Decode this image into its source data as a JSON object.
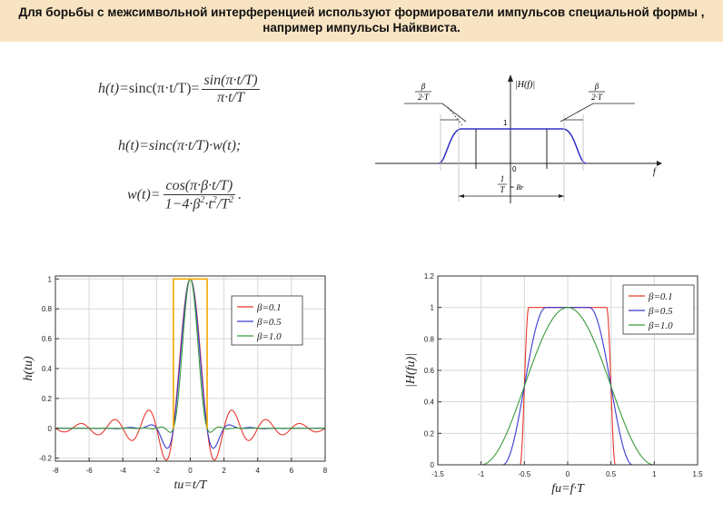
{
  "header": {
    "line1": "Для борьбы с межсимвольной интерференцией используют формирователи импульсов специальной формы ,",
    "line2": "например импульсы Найквиста."
  },
  "formulas": {
    "f1_left": "h(t)=",
    "f1_mid": "sinc(π·t/T)=",
    "f1_num": "sin(π·t/T)",
    "f1_den": "π·t/T",
    "f2": "h(t)=sinc(π·t/T)·w(t);",
    "f3_left": "w(t)=",
    "f3_num": "cos(π·β·t/T)",
    "f3_den_a": "1−4·β",
    "f3_den_b": "·t",
    "f3_den_c": "/T",
    "f3_sup": "2",
    "f3_end": "."
  },
  "spectrum_diagram": {
    "ylabel": "|H(f)|",
    "xlabel": "f",
    "one_label": "1",
    "zero_label": "0",
    "beta_num": "β",
    "beta_den": "2·T",
    "bottom_num": "1",
    "bottom_den": "T",
    "bottom_right": "= Br"
  },
  "chart_data": [
    {
      "type": "line",
      "xlabel": "tи=t/T",
      "ylabel": "h(tи)",
      "xlim": [
        -8,
        8
      ],
      "ylim": [
        -0.22,
        1.02
      ],
      "xticks": [
        "-8",
        "-6",
        "-4",
        "-2",
        "0",
        "2",
        "4",
        "6",
        "8"
      ],
      "yticks": [
        "-0.2",
        "0",
        "0.2",
        "0.4",
        "0.6",
        "0.8",
        "1"
      ],
      "grid": true,
      "legend_position": "top-right",
      "legend": [
        "β=0.1",
        "β=0.5",
        "β=1.0"
      ],
      "series": [
        {
          "name": "β=0.1",
          "color": "#e8392c",
          "x": [
            -8,
            -7.5,
            -7,
            -6.5,
            -6,
            -5.5,
            -5,
            -4.5,
            -4,
            -3.5,
            -3,
            -2.5,
            -2,
            -1.5,
            -1,
            -0.5,
            0,
            0.5,
            1,
            1.5,
            2,
            2.5,
            3,
            3.5,
            4,
            4.5,
            5,
            5.5,
            6,
            6.5,
            7,
            7.5,
            8
          ],
          "y": [
            0,
            -0.04,
            0,
            0.05,
            0,
            -0.06,
            0,
            0.07,
            0,
            -0.09,
            0,
            0.13,
            0,
            -0.21,
            0,
            0.64,
            1,
            0.64,
            0,
            -0.21,
            0,
            0.13,
            0,
            -0.09,
            0,
            0.07,
            0,
            -0.06,
            0,
            0.05,
            0,
            -0.04,
            0
          ]
        },
        {
          "name": "β=0.5",
          "color": "#3a3ad0",
          "x": [
            -8,
            -4,
            -3,
            -2.5,
            -2,
            -1.5,
            -1,
            -0.5,
            0,
            0.5,
            1,
            1.5,
            2,
            2.5,
            3,
            4,
            8
          ],
          "y": [
            0,
            0,
            0,
            0.01,
            0,
            -0.09,
            0,
            0.6,
            1,
            0.6,
            0,
            -0.09,
            0,
            0.01,
            0,
            0,
            0
          ]
        },
        {
          "name": "β=1.0",
          "color": "#3a9a3a",
          "x": [
            -8,
            -2,
            -1.5,
            -1,
            -0.5,
            0,
            0.5,
            1,
            1.5,
            2,
            8
          ],
          "y": [
            0,
            0,
            0,
            0,
            0.5,
            1,
            0.5,
            0,
            0,
            0,
            0
          ]
        },
        {
          "name": "",
          "color": "#f5a800",
          "x": [
            -1,
            -1,
            1,
            1
          ],
          "y": [
            0,
            1,
            1,
            0
          ]
        }
      ]
    },
    {
      "type": "line",
      "xlabel": "fи=f·T",
      "ylabel": "|H(fи)|",
      "xlim": [
        -1.5,
        1.5
      ],
      "ylim": [
        0,
        1.2
      ],
      "xticks": [
        "-1.5",
        "-1",
        "-0.5",
        "0",
        "0.5",
        "1",
        "1.5"
      ],
      "yticks": [
        "0",
        "0.2",
        "0.4",
        "0.6",
        "0.8",
        "1",
        "1.2"
      ],
      "grid": true,
      "legend_position": "top-right",
      "legend": [
        "β=0.1",
        "β=0.5",
        "β=1.0"
      ],
      "series": [
        {
          "name": "β=0.1",
          "color": "#e8392c",
          "beta": 0.1
        },
        {
          "name": "β=0.5",
          "color": "#3a3ad0",
          "beta": 0.5
        },
        {
          "name": "β=1.0",
          "color": "#3a9a3a",
          "beta": 1.0
        }
      ]
    }
  ]
}
